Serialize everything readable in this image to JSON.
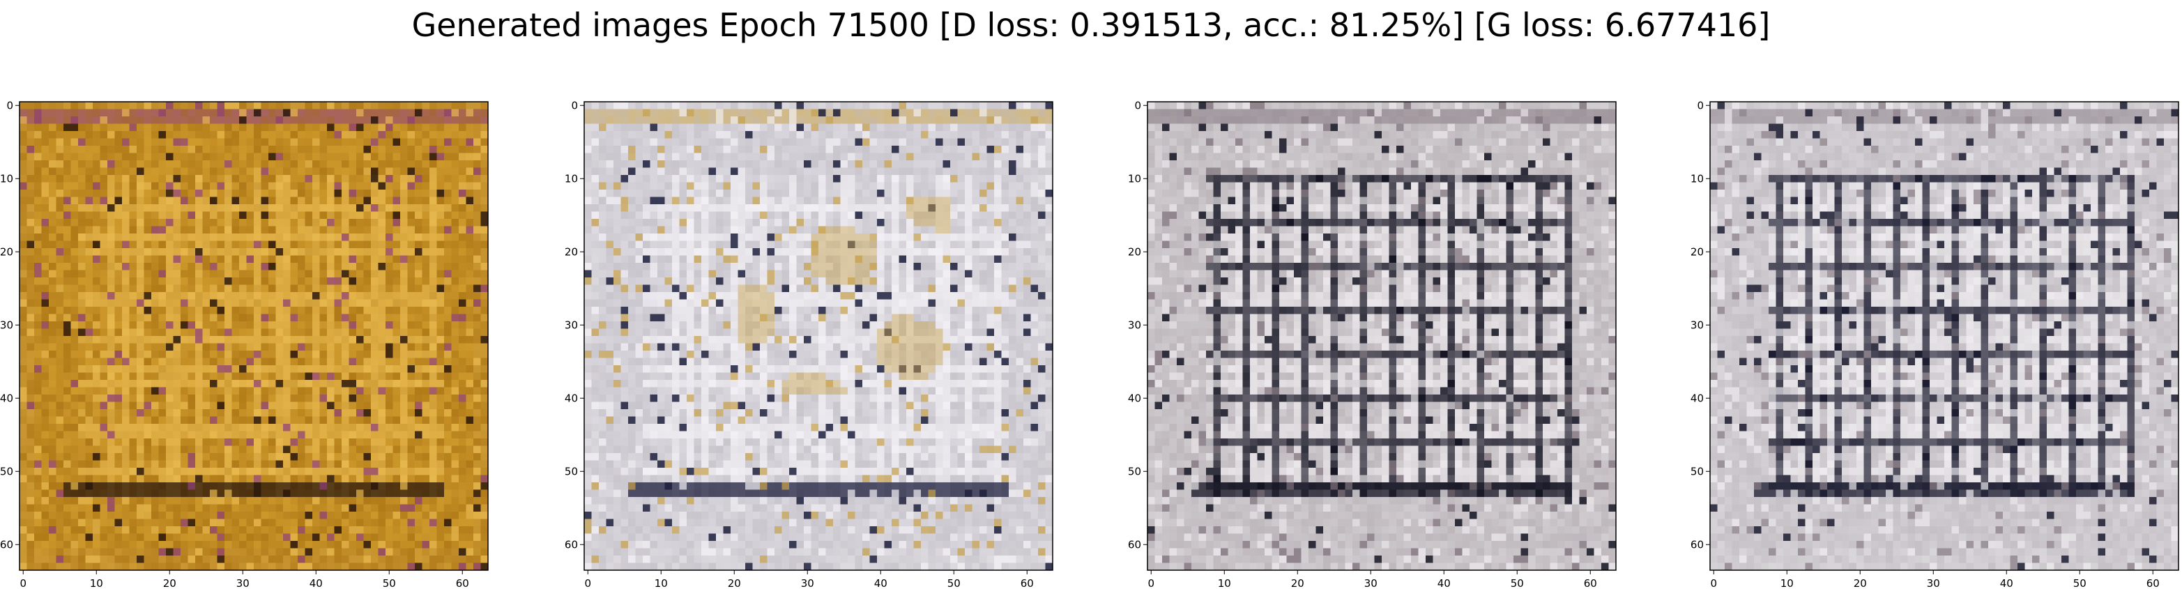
{
  "figure": {
    "title": "Generated images Epoch 71500 [D loss: 0.391513, acc.: 81.25%] [G loss: 6.677416]"
  },
  "axes_ticks": {
    "x": [
      "0",
      "10",
      "20",
      "30",
      "40",
      "50",
      "60"
    ],
    "y": [
      "0",
      "10",
      "20",
      "30",
      "40",
      "50",
      "60"
    ]
  },
  "panels": [
    {
      "palette": {
        "base": "#b07a18",
        "mid": "#cf9a2c",
        "light": "#e7b84e",
        "dark": "#2b170b",
        "accent": "#8f3f7a"
      }
    },
    {
      "palette": {
        "base": "#c9c5cc",
        "mid": "#d9d6dd",
        "light": "#f2f0f5",
        "dark": "#1d1f3c",
        "accent": "#c8a24b"
      }
    },
    {
      "palette": {
        "base": "#bdb7bb",
        "mid": "#cfcace",
        "light": "#ebe7ea",
        "dark": "#131322",
        "accent": "#7c6f78"
      }
    },
    {
      "palette": {
        "base": "#c3bfc4",
        "mid": "#d3cfd4",
        "light": "#eeebef",
        "dark": "#1a1b2f",
        "accent": "#8b7f88"
      }
    }
  ]
}
